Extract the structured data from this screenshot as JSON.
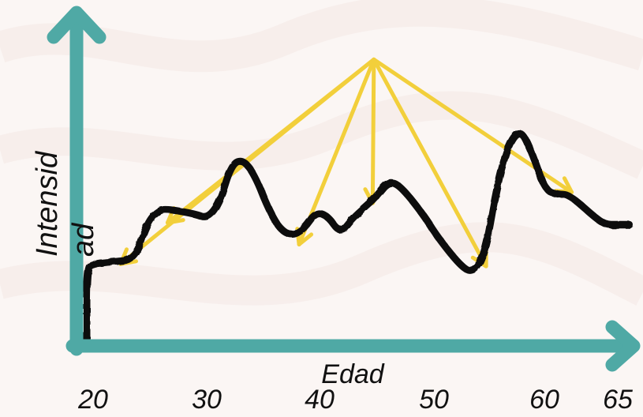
{
  "chart_data": {
    "type": "line",
    "title": "",
    "xlabel": "Edad",
    "ylabel_lines": [
      "Intensid",
      "ad"
    ],
    "x_ticks": [
      "20",
      "30",
      "40",
      "50",
      "60",
      "65"
    ],
    "x_tick_values": [
      20,
      30,
      40,
      50,
      60,
      65
    ],
    "xlim": [
      20,
      65
    ],
    "series": [
      {
        "values_note": "",
        "x": [
          20,
          20,
          20.5,
          22,
          24,
          25,
          26,
          27,
          29,
          30,
          31,
          32,
          33,
          34,
          35,
          36,
          37,
          38,
          39,
          40,
          41,
          42,
          43,
          44,
          45,
          46,
          48,
          49,
          51,
          52,
          53,
          54,
          55,
          56,
          57,
          58,
          59,
          60,
          62,
          63,
          64,
          65
        ],
        "y": [
          0.0,
          0.32,
          0.34,
          0.35,
          0.36,
          0.53,
          0.59,
          0.59,
          0.57,
          0.55,
          0.62,
          0.8,
          0.82,
          0.74,
          0.6,
          0.5,
          0.47,
          0.5,
          0.58,
          0.56,
          0.48,
          0.55,
          0.6,
          0.65,
          0.72,
          0.7,
          0.56,
          0.47,
          0.33,
          0.3,
          0.38,
          0.7,
          0.9,
          0.96,
          0.84,
          0.68,
          0.66,
          0.66,
          0.56,
          0.52,
          0.52,
          0.52
        ]
      }
    ],
    "annotation": {
      "type": "arrows-from-point",
      "origin": [
        43.8,
        1.28
      ],
      "targets": [
        [
          22.8,
          0.34
        ],
        [
          26.7,
          0.53
        ],
        [
          37.6,
          0.43
        ],
        [
          43.7,
          0.62
        ],
        [
          53.1,
          0.33
        ],
        [
          60.2,
          0.67
        ]
      ]
    },
    "colors": {
      "axis": "#4fa9a5",
      "line": "#0a0a0a",
      "arrows": "#f2cf3b",
      "background": "#fbf6f4"
    }
  }
}
